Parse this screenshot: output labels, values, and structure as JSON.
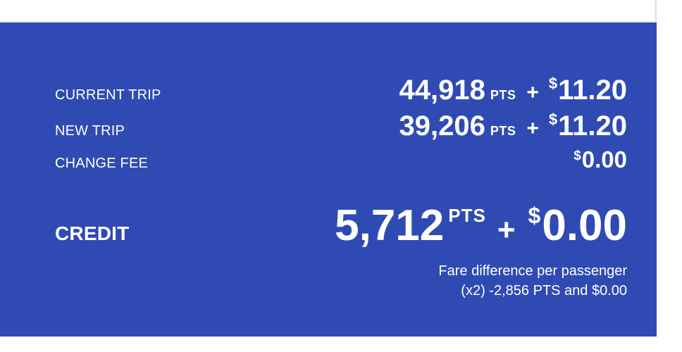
{
  "theme": {
    "panel_blue": "#2F4BB3",
    "text_white": "#FFFFFF",
    "border_gray": "#E2E2E2"
  },
  "summary": {
    "points_unit": "PTS",
    "plus_sign": "+",
    "currency_symbol": "$",
    "current_trip": {
      "label": "CURRENT TRIP",
      "points": "44,918",
      "amount": "11.20"
    },
    "new_trip": {
      "label": "NEW TRIP",
      "points": "39,206",
      "amount": "11.20"
    },
    "change_fee": {
      "label": "CHANGE FEE",
      "amount": "0.00"
    },
    "credit": {
      "label": "CREDIT",
      "points": "5,712",
      "amount": "0.00"
    },
    "footnote": {
      "line1": "Fare difference per passenger",
      "line2": "(x2) -2,856 PTS and $0.00"
    }
  }
}
